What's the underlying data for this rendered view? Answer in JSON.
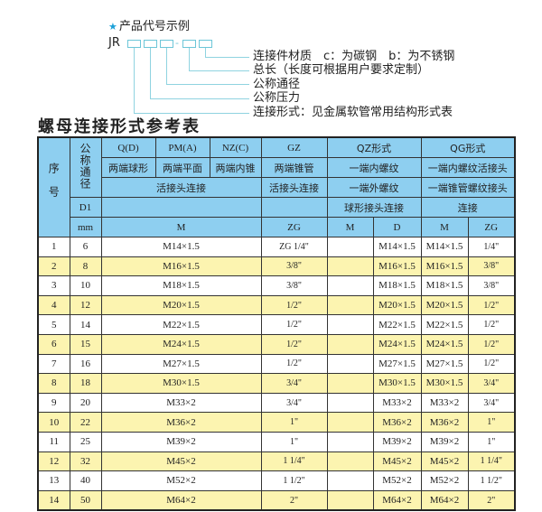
{
  "example": {
    "title": "产品代号示例",
    "star_icon": "star-icon",
    "prefix": "JR",
    "dash": "-",
    "labels": [
      "连接件材质　c：为碳钢　b：为不锈钢",
      "总长（长度可根据用户要求定制）",
      "公称通径",
      "公称压力",
      "连接形式：见金属软管常用结构形式表"
    ]
  },
  "table": {
    "title": "螺母连接形式参考表",
    "header": {
      "seq": "序号",
      "nominal": "公称通径",
      "qd": "Q(D)",
      "pm": "PM(A)",
      "nz": "NZ(C)",
      "gz": "GZ",
      "qz": "QZ形式",
      "qg": "QG形式",
      "qd_desc": "两端球形",
      "pm_desc": "两端平面",
      "nz_desc": "两端内锥",
      "gz_desc": "两端锥管",
      "qz_desc1": "一端内螺纹",
      "qg_desc1": "一端内螺纹活接头",
      "union_conn": "活接头连接",
      "gz_conn": "活接头连接",
      "qz_desc2": "一端外螺纹",
      "qg_desc2": "一端锥管螺纹接头",
      "d1": "D1",
      "qz_desc3": "球形接头连接",
      "qg_desc3": "连接",
      "mm": "mm",
      "m": "M",
      "zg": "ZG",
      "qz_m": "M",
      "qz_d": "D",
      "qg_m": "M",
      "qg_zg": "ZG"
    },
    "rows": [
      {
        "no": "1",
        "dn": "6",
        "m": "M14×1.5",
        "zg": "ZG 1/4\"",
        "qz_m": "",
        "qz_d": "M14×1.5",
        "qg_m": "M14×1.5",
        "qg_zg": "1/4\""
      },
      {
        "no": "2",
        "dn": "8",
        "m": "M16×1.5",
        "zg": "3/8\"",
        "qz_m": "",
        "qz_d": "M16×1.5",
        "qg_m": "M16×1.5",
        "qg_zg": "3/8\""
      },
      {
        "no": "3",
        "dn": "10",
        "m": "M18×1.5",
        "zg": "3/8\"",
        "qz_m": "",
        "qz_d": "M18×1.5",
        "qg_m": "M18×1.5",
        "qg_zg": "3/8\""
      },
      {
        "no": "4",
        "dn": "12",
        "m": "M20×1.5",
        "zg": "1/2\"",
        "qz_m": "",
        "qz_d": "M20×1.5",
        "qg_m": "M20×1.5",
        "qg_zg": "1/2\""
      },
      {
        "no": "5",
        "dn": "14",
        "m": "M22×1.5",
        "zg": "1/2\"",
        "qz_m": "",
        "qz_d": "M22×1.5",
        "qg_m": "M22×1.5",
        "qg_zg": "1/2\""
      },
      {
        "no": "6",
        "dn": "15",
        "m": "M24×1.5",
        "zg": "1/2\"",
        "qz_m": "",
        "qz_d": "M24×1.5",
        "qg_m": "M24×1.5",
        "qg_zg": "1/2\""
      },
      {
        "no": "7",
        "dn": "16",
        "m": "M27×1.5",
        "zg": "1/2\"",
        "qz_m": "",
        "qz_d": "M27×1.5",
        "qg_m": "M27×1.5",
        "qg_zg": "1/2\""
      },
      {
        "no": "8",
        "dn": "18",
        "m": "M30×1.5",
        "zg": "3/4\"",
        "qz_m": "",
        "qz_d": "M30×1.5",
        "qg_m": "M30×1.5",
        "qg_zg": "3/4\""
      },
      {
        "no": "9",
        "dn": "20",
        "m": "M33×2",
        "zg": "3/4\"",
        "qz_m": "",
        "qz_d": "M33×2",
        "qg_m": "M33×2",
        "qg_zg": "3/4\""
      },
      {
        "no": "10",
        "dn": "22",
        "m": "M36×2",
        "zg": "1\"",
        "qz_m": "",
        "qz_d": "M36×2",
        "qg_m": "M36×2",
        "qg_zg": "1\""
      },
      {
        "no": "11",
        "dn": "25",
        "m": "M39×2",
        "zg": "1\"",
        "qz_m": "",
        "qz_d": "M39×2",
        "qg_m": "M39×2",
        "qg_zg": "1\""
      },
      {
        "no": "12",
        "dn": "32",
        "m": "M45×2",
        "zg": "1 1/4\"",
        "qz_m": "",
        "qz_d": "M45×2",
        "qg_m": "M45×2",
        "qg_zg": "1 1/4\""
      },
      {
        "no": "13",
        "dn": "40",
        "m": "M52×2",
        "zg": "1 1/2\"",
        "qz_m": "",
        "qz_d": "M52×2",
        "qg_m": "M52×2",
        "qg_zg": "1 1/2\""
      },
      {
        "no": "14",
        "dn": "50",
        "m": "M64×2",
        "zg": "2\"",
        "qz_m": "",
        "qz_d": "M64×2",
        "qg_m": "M64×2",
        "qg_zg": "2\""
      }
    ]
  },
  "colors": {
    "header_bg": "#8ecff0",
    "stripe_bg": "#fcf4b0",
    "diagram_line": "#8fd3e0",
    "star": "#1aa0d8"
  }
}
